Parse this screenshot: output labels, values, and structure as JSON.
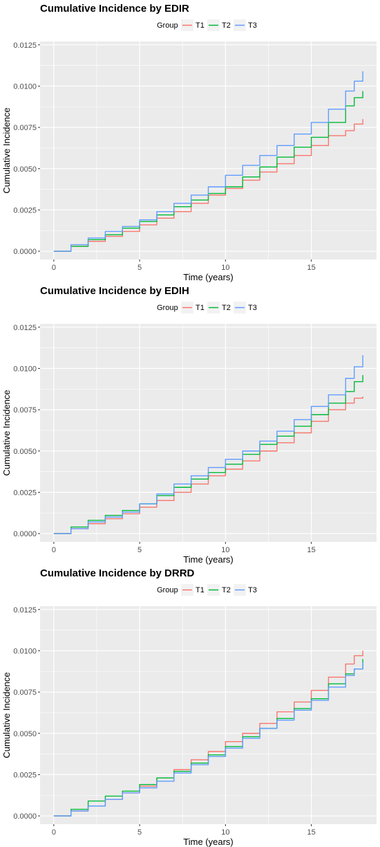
{
  "chart_data": [
    {
      "type": "line",
      "title": "Cumulative Incidence by EDIR",
      "xlabel": "Time (years)",
      "ylabel": "Cumulative Incidence",
      "xlim": [
        -0.8,
        18.8
      ],
      "ylim": [
        -0.0005,
        0.0127
      ],
      "xticks": [
        0,
        5,
        10,
        15
      ],
      "xtick_labels": [
        "0",
        "5",
        "10",
        "15"
      ],
      "yticks": [
        0.0,
        0.0025,
        0.005,
        0.0075,
        0.01,
        0.0125
      ],
      "ytick_labels": [
        "0.0000",
        "0.0025",
        "0.0050",
        "0.0075",
        "0.0100",
        "0.0125"
      ],
      "grid": true,
      "legend": {
        "title": "Group",
        "position": "top"
      },
      "series": [
        {
          "name": "T1",
          "color": "#F8766D",
          "x": [
            0,
            1,
            2,
            3,
            4,
            5,
            6,
            7,
            8,
            9,
            10,
            11,
            12,
            13,
            14,
            15,
            16,
            17,
            17.5,
            18
          ],
          "y": [
            0,
            0.0003,
            0.0006,
            0.0009,
            0.0012,
            0.0016,
            0.002,
            0.0024,
            0.0029,
            0.0034,
            0.0038,
            0.0043,
            0.0048,
            0.0053,
            0.0058,
            0.0064,
            0.007,
            0.0073,
            0.0077,
            0.008
          ]
        },
        {
          "name": "T2",
          "color": "#00BA38",
          "x": [
            0,
            1,
            2,
            3,
            4,
            5,
            6,
            7,
            8,
            9,
            10,
            11,
            12,
            13,
            14,
            15,
            16,
            17,
            17.5,
            18
          ],
          "y": [
            0,
            0.0003,
            0.0007,
            0.001,
            0.0014,
            0.0018,
            0.0022,
            0.0027,
            0.0031,
            0.0035,
            0.0039,
            0.0045,
            0.0051,
            0.0057,
            0.0063,
            0.0069,
            0.0078,
            0.0088,
            0.0093,
            0.0097
          ]
        },
        {
          "name": "T3",
          "color": "#619CFF",
          "x": [
            0,
            1,
            2,
            3,
            4,
            5,
            6,
            7,
            8,
            9,
            10,
            11,
            12,
            13,
            14,
            15,
            16,
            17,
            17.5,
            18
          ],
          "y": [
            0,
            0.0004,
            0.0008,
            0.0012,
            0.0015,
            0.0019,
            0.0024,
            0.0029,
            0.0034,
            0.0039,
            0.0046,
            0.0052,
            0.0058,
            0.0064,
            0.0071,
            0.0078,
            0.0086,
            0.0097,
            0.0103,
            0.0109
          ]
        }
      ]
    },
    {
      "type": "line",
      "title": "Cumulative Incidence by EDIH",
      "xlabel": "Time (years)",
      "ylabel": "Cumulative Incidence",
      "xlim": [
        -0.8,
        18.8
      ],
      "ylim": [
        -0.0005,
        0.0127
      ],
      "xticks": [
        0,
        5,
        10,
        15
      ],
      "xtick_labels": [
        "0",
        "5",
        "10",
        "15"
      ],
      "yticks": [
        0.0,
        0.0025,
        0.005,
        0.0075,
        0.01,
        0.0125
      ],
      "ytick_labels": [
        "0.0000",
        "0.0025",
        "0.0050",
        "0.0075",
        "0.0100",
        "0.0125"
      ],
      "grid": true,
      "legend": {
        "title": "Group",
        "position": "top"
      },
      "series": [
        {
          "name": "T1",
          "color": "#F8766D",
          "x": [
            0,
            1,
            2,
            3,
            4,
            5,
            6,
            7,
            8,
            9,
            10,
            11,
            12,
            13,
            14,
            15,
            16,
            17,
            17.5,
            18
          ],
          "y": [
            0,
            0.0003,
            0.0006,
            0.0009,
            0.0012,
            0.0016,
            0.002,
            0.0025,
            0.003,
            0.0035,
            0.0039,
            0.0044,
            0.005,
            0.0055,
            0.0061,
            0.0068,
            0.0075,
            0.0079,
            0.0082,
            0.0083
          ]
        },
        {
          "name": "T2",
          "color": "#00BA38",
          "x": [
            0,
            1,
            2,
            3,
            4,
            5,
            6,
            7,
            8,
            9,
            10,
            11,
            12,
            13,
            14,
            15,
            16,
            17,
            17.5,
            18
          ],
          "y": [
            0,
            0.0004,
            0.0008,
            0.0011,
            0.0014,
            0.0018,
            0.0023,
            0.0028,
            0.0033,
            0.0037,
            0.0042,
            0.0048,
            0.0054,
            0.0059,
            0.0065,
            0.0072,
            0.0079,
            0.0086,
            0.0092,
            0.0096
          ]
        },
        {
          "name": "T3",
          "color": "#619CFF",
          "x": [
            0,
            1,
            2,
            3,
            4,
            5,
            6,
            7,
            8,
            9,
            10,
            11,
            12,
            13,
            14,
            15,
            16,
            17,
            17.5,
            18
          ],
          "y": [
            0,
            0.0003,
            0.0007,
            0.001,
            0.0013,
            0.0018,
            0.0024,
            0.003,
            0.0035,
            0.004,
            0.0045,
            0.005,
            0.0056,
            0.0062,
            0.0069,
            0.0077,
            0.0084,
            0.0094,
            0.0101,
            0.0108
          ]
        }
      ]
    },
    {
      "type": "line",
      "title": "Cumulative Incidence by DRRD",
      "xlabel": "Time (years)",
      "ylabel": "Cumulative Incidence",
      "xlim": [
        -0.8,
        18.8
      ],
      "ylim": [
        -0.0005,
        0.0127
      ],
      "xticks": [
        0,
        5,
        10,
        15
      ],
      "xtick_labels": [
        "0",
        "5",
        "10",
        "15"
      ],
      "yticks": [
        0.0,
        0.0025,
        0.005,
        0.0075,
        0.01,
        0.0125
      ],
      "ytick_labels": [
        "0.0000",
        "0.0025",
        "0.0050",
        "0.0075",
        "0.0100",
        "0.0125"
      ],
      "grid": true,
      "legend": {
        "title": "Group",
        "position": "top"
      },
      "series": [
        {
          "name": "T1",
          "color": "#F8766D",
          "x": [
            0,
            1,
            2,
            3,
            4,
            5,
            6,
            7,
            8,
            9,
            10,
            11,
            12,
            13,
            14,
            15,
            16,
            17,
            17.5,
            18
          ],
          "y": [
            0,
            0.0003,
            0.0006,
            0.001,
            0.0014,
            0.0018,
            0.0023,
            0.0028,
            0.0034,
            0.0039,
            0.0045,
            0.005,
            0.0056,
            0.0063,
            0.0069,
            0.0076,
            0.0084,
            0.0092,
            0.0097,
            0.01
          ]
        },
        {
          "name": "T2",
          "color": "#00BA38",
          "x": [
            0,
            1,
            2,
            3,
            4,
            5,
            6,
            7,
            8,
            9,
            10,
            11,
            12,
            13,
            14,
            15,
            16,
            17,
            17.5,
            18
          ],
          "y": [
            0,
            0.0004,
            0.0009,
            0.0012,
            0.0015,
            0.0019,
            0.0023,
            0.0027,
            0.0032,
            0.0037,
            0.0042,
            0.0048,
            0.0053,
            0.0059,
            0.0065,
            0.0071,
            0.008,
            0.0086,
            0.0089,
            0.0095
          ]
        },
        {
          "name": "T3",
          "color": "#619CFF",
          "x": [
            0,
            1,
            2,
            3,
            4,
            5,
            6,
            7,
            8,
            9,
            10,
            11,
            12,
            13,
            14,
            15,
            16,
            17,
            17.5,
            18
          ],
          "y": [
            0,
            0.0003,
            0.0006,
            0.001,
            0.0014,
            0.0017,
            0.0021,
            0.0026,
            0.0031,
            0.0036,
            0.0041,
            0.0047,
            0.0053,
            0.0058,
            0.0064,
            0.007,
            0.0078,
            0.0085,
            0.0089,
            0.0093
          ]
        }
      ]
    }
  ]
}
